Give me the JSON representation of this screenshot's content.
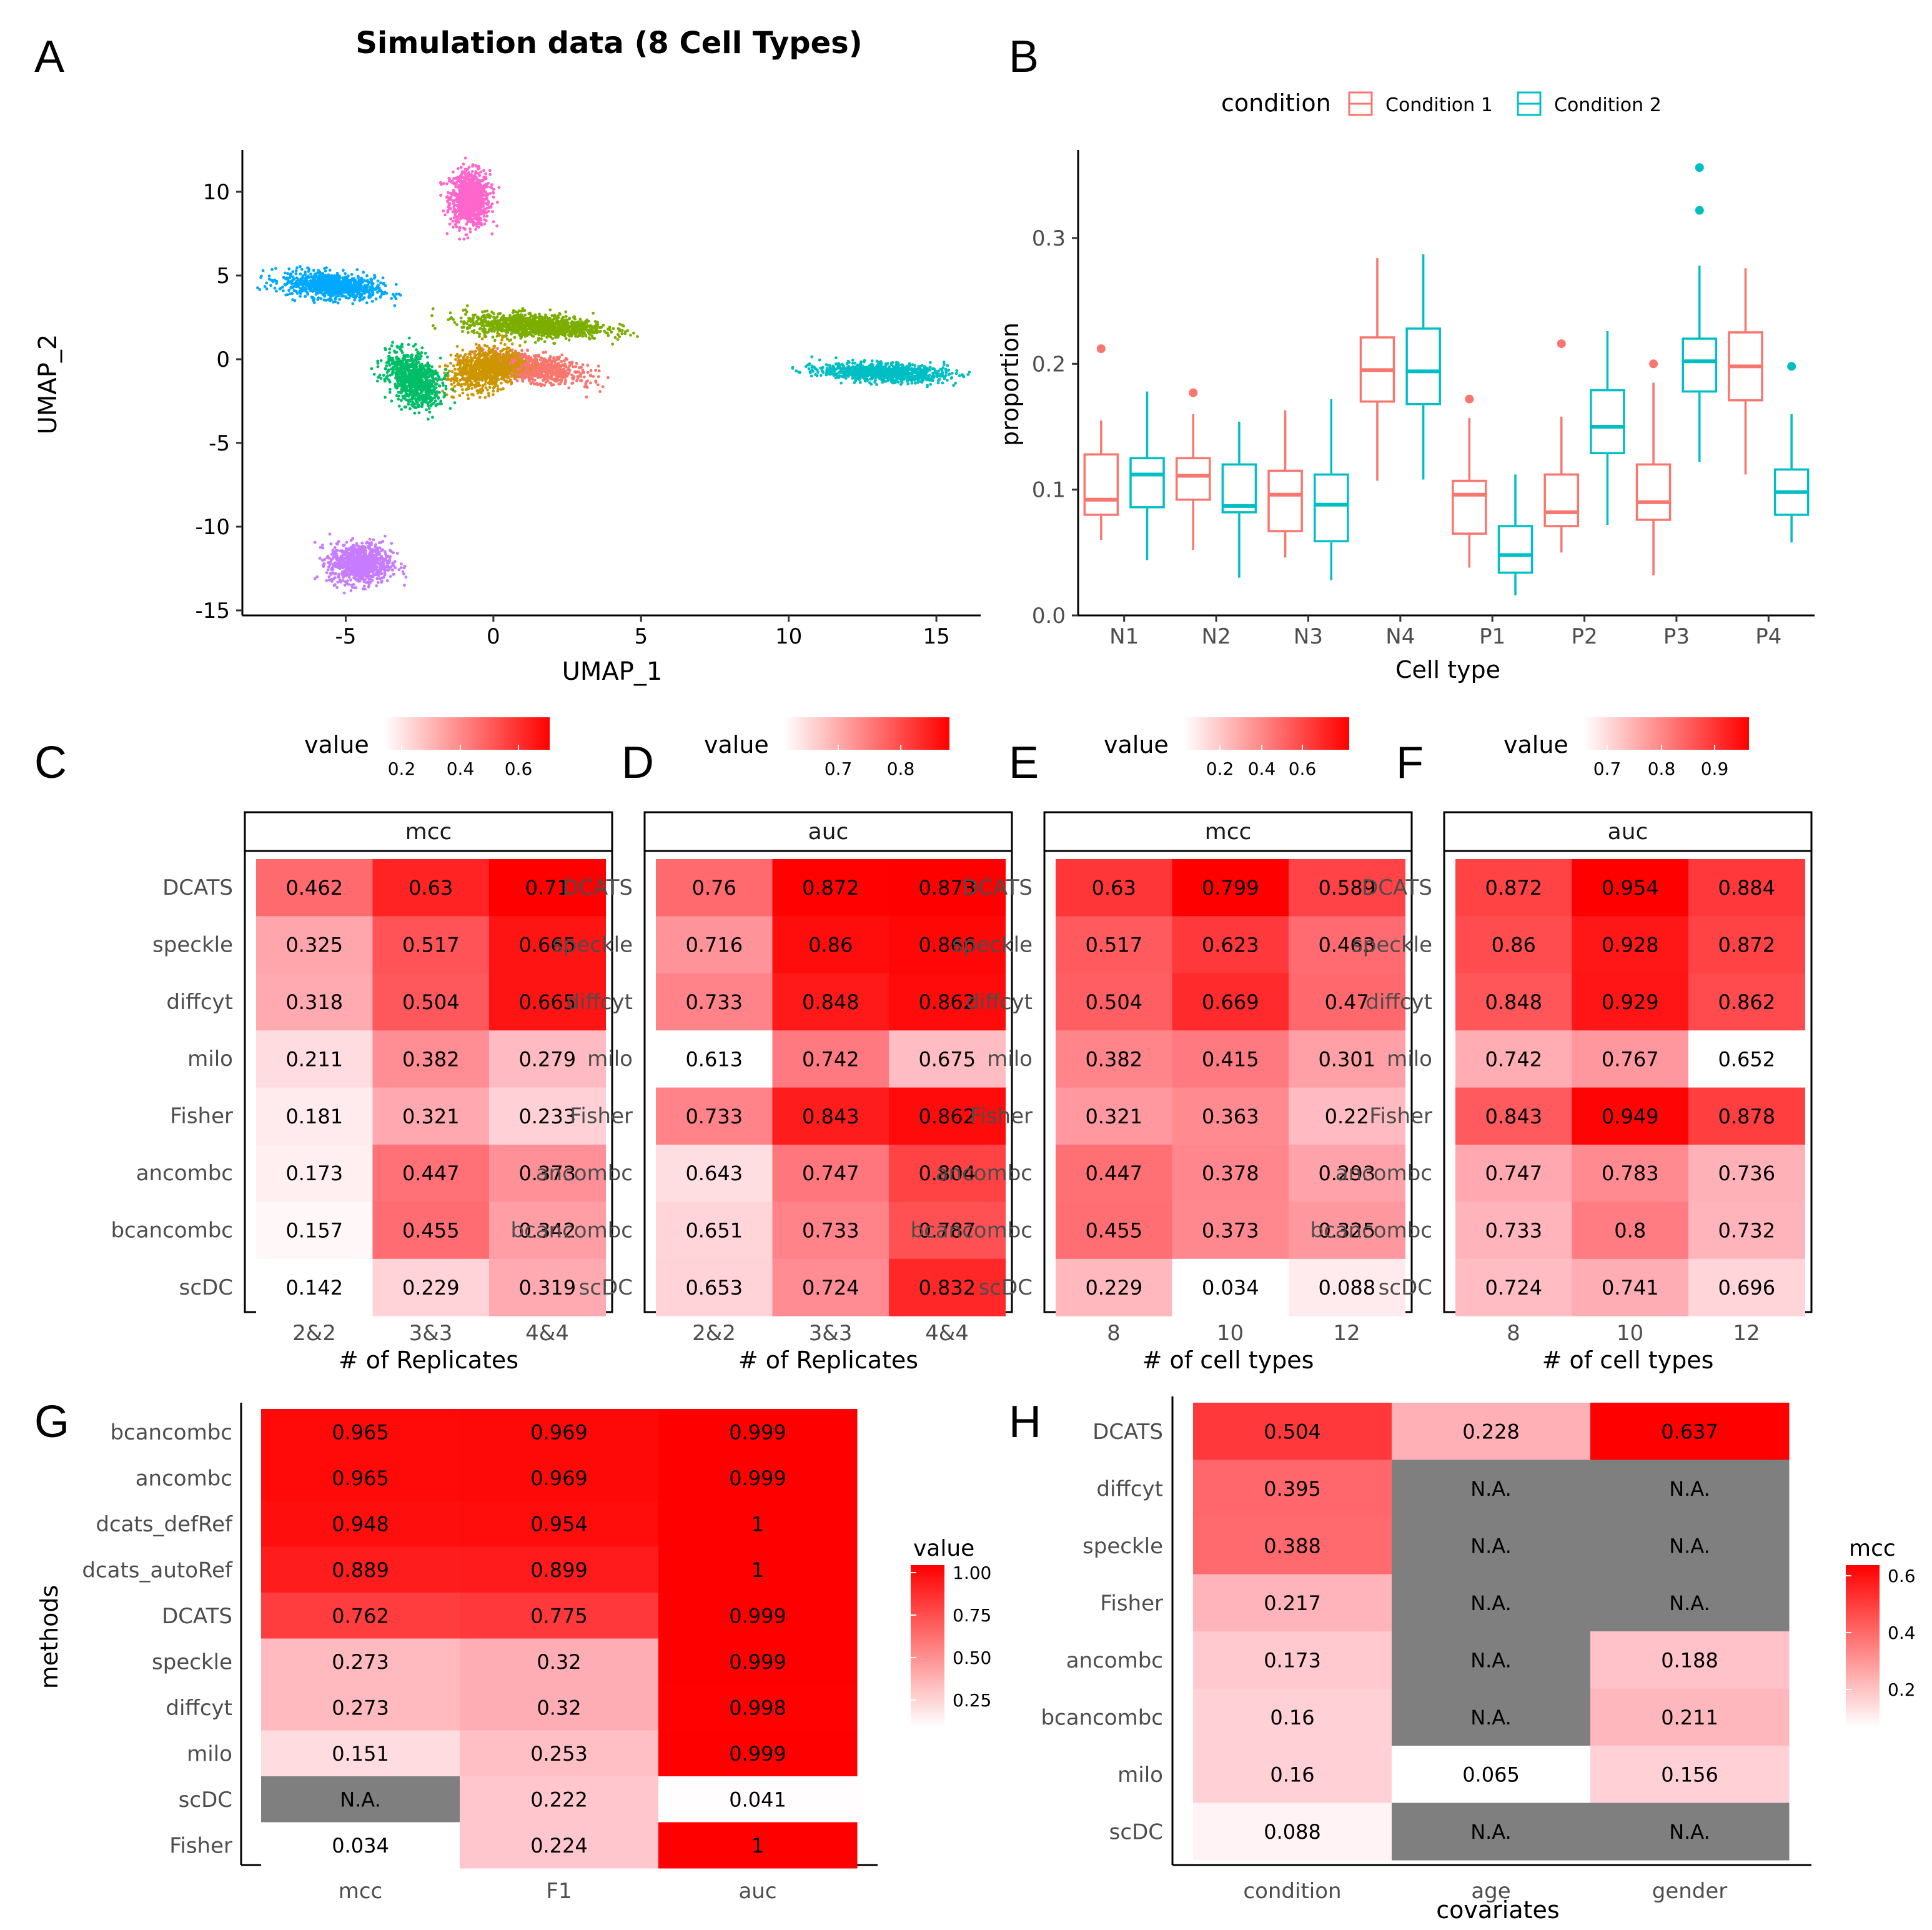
{
  "figure": {
    "panel_letters": [
      "A",
      "B",
      "C",
      "D",
      "E",
      "F",
      "G",
      "H"
    ]
  },
  "panel_a": {
    "title": "Simulation data (8 Cell Types)",
    "chart_data": {
      "type": "scatter",
      "title": "Simulation data (8 Cell Types)",
      "xlabel": "UMAP_1",
      "ylabel": "UMAP_2",
      "xlim": [
        -8.5,
        16.5
      ],
      "ylim": [
        -15.3,
        12.5
      ],
      "xticks": [
        -5,
        0,
        5,
        10,
        15
      ],
      "yticks": [
        10,
        5,
        0,
        -5,
        -10,
        -15
      ],
      "clusters": [
        {
          "color": "#ff66cc",
          "cx": -0.8,
          "cy": 9.6,
          "sx": 0.45,
          "sy": 1.1,
          "n": 900
        },
        {
          "color": "#00a9ff",
          "cx": -5.5,
          "cy": 4.4,
          "sx": 1.1,
          "sy": 0.5,
          "n": 900,
          "angle": -10
        },
        {
          "color": "#7cae00",
          "cx": 1.4,
          "cy": 2.0,
          "sx": 1.6,
          "sy": 0.45,
          "n": 1100,
          "angle": -5
        },
        {
          "color": "#f8766d",
          "cx": 1.3,
          "cy": -0.5,
          "sx": 1.2,
          "sy": 0.5,
          "n": 900,
          "angle": -18
        },
        {
          "color": "#cd9600",
          "cx": -0.3,
          "cy": -0.6,
          "sx": 0.7,
          "sy": 0.9,
          "n": 800,
          "angle": -35
        },
        {
          "color": "#00be67",
          "cx": -2.7,
          "cy": -1.2,
          "sx": 0.55,
          "sy": 1.1,
          "n": 900,
          "angle": 15
        },
        {
          "color": "#00bfc4",
          "cx": 13.2,
          "cy": -0.8,
          "sx": 1.4,
          "sy": 0.35,
          "n": 1000,
          "angle": -4
        },
        {
          "color": "#c77cff",
          "cx": -4.5,
          "cy": -12.2,
          "sx": 0.7,
          "sy": 0.8,
          "n": 900
        }
      ]
    }
  },
  "panel_b": {
    "legend_title": "condition",
    "legend_items": [
      "Condition 1",
      "Condition 2"
    ],
    "chart_data": {
      "type": "box",
      "xlabel": "Cell type",
      "ylabel": "proportion",
      "ylim": [
        0,
        0.37
      ],
      "yticks": [
        0.0,
        0.1,
        0.2,
        0.3
      ],
      "ytick_labels": [
        "0.0",
        "0.1",
        "0.2",
        "0.3"
      ],
      "categories": [
        "N1",
        "N2",
        "N3",
        "N4",
        "P1",
        "P2",
        "P3",
        "P4"
      ],
      "series": [
        {
          "name": "Condition 1",
          "color": "#f8766d",
          "boxes": [
            {
              "min": 0.06,
              "q1": 0.08,
              "med": 0.092,
              "q3": 0.128,
              "max": 0.155,
              "out": [
                0.212
              ]
            },
            {
              "min": 0.052,
              "q1": 0.092,
              "med": 0.111,
              "q3": 0.125,
              "max": 0.16,
              "out": [
                0.177
              ]
            },
            {
              "min": 0.046,
              "q1": 0.067,
              "med": 0.096,
              "q3": 0.115,
              "max": 0.163,
              "out": []
            },
            {
              "min": 0.107,
              "q1": 0.17,
              "med": 0.195,
              "q3": 0.221,
              "max": 0.284,
              "out": []
            },
            {
              "min": 0.038,
              "q1": 0.065,
              "med": 0.096,
              "q3": 0.107,
              "max": 0.157,
              "out": [
                0.172
              ]
            },
            {
              "min": 0.05,
              "q1": 0.071,
              "med": 0.082,
              "q3": 0.112,
              "max": 0.158,
              "out": [
                0.216
              ]
            },
            {
              "min": 0.032,
              "q1": 0.076,
              "med": 0.09,
              "q3": 0.12,
              "max": 0.185,
              "out": [
                0.2
              ]
            },
            {
              "min": 0.112,
              "q1": 0.171,
              "med": 0.198,
              "q3": 0.225,
              "max": 0.276,
              "out": []
            }
          ]
        },
        {
          "name": "Condition 2",
          "color": "#00bfc4",
          "boxes": [
            {
              "min": 0.044,
              "q1": 0.086,
              "med": 0.112,
              "q3": 0.125,
              "max": 0.178,
              "out": []
            },
            {
              "min": 0.03,
              "q1": 0.082,
              "med": 0.087,
              "q3": 0.12,
              "max": 0.154,
              "out": []
            },
            {
              "min": 0.028,
              "q1": 0.059,
              "med": 0.088,
              "q3": 0.112,
              "max": 0.172,
              "out": []
            },
            {
              "min": 0.108,
              "q1": 0.168,
              "med": 0.194,
              "q3": 0.228,
              "max": 0.287,
              "out": []
            },
            {
              "min": 0.016,
              "q1": 0.034,
              "med": 0.048,
              "q3": 0.071,
              "max": 0.112,
              "out": []
            },
            {
              "min": 0.072,
              "q1": 0.129,
              "med": 0.15,
              "q3": 0.179,
              "max": 0.226,
              "out": []
            },
            {
              "min": 0.122,
              "q1": 0.178,
              "med": 0.202,
              "q3": 0.22,
              "max": 0.278,
              "out": [
                0.322,
                0.356
              ]
            },
            {
              "min": 0.058,
              "q1": 0.08,
              "med": 0.098,
              "q3": 0.116,
              "max": 0.16,
              "out": [
                0.198
              ]
            }
          ]
        }
      ]
    }
  },
  "panels_cdef": [
    {
      "letter": "C",
      "legend_title": "value",
      "facet": "mcc",
      "xlabel": "# of Replicates",
      "xcats": [
        "2&2",
        "3&3",
        "4&4"
      ],
      "legend_ticks": [
        "0.2",
        "0.4",
        "0.6"
      ],
      "rows": [
        "DCATS",
        "speckle",
        "diffcyt",
        "milo",
        "Fisher",
        "ancombc",
        "bcancombc",
        "scDC"
      ],
      "chart_data": {
        "type": "heatmap",
        "vmin": 0.142,
        "vmax": 0.71,
        "values": [
          [
            0.462,
            0.63,
            0.71
          ],
          [
            0.325,
            0.517,
            0.665
          ],
          [
            0.318,
            0.504,
            0.665
          ],
          [
            0.211,
            0.382,
            0.279
          ],
          [
            0.181,
            0.321,
            0.233
          ],
          [
            0.173,
            0.447,
            0.373
          ],
          [
            0.157,
            0.455,
            0.342
          ],
          [
            0.142,
            0.229,
            0.319
          ]
        ],
        "labels": [
          [
            "0.462",
            "0.63",
            "0.71"
          ],
          [
            "0.325",
            "0.517",
            "0.665"
          ],
          [
            "0.318",
            "0.504",
            "0.665"
          ],
          [
            "0.211",
            "0.382",
            "0.279"
          ],
          [
            "0.181",
            "0.321",
            "0.233"
          ],
          [
            "0.173",
            "0.447",
            "0.373"
          ],
          [
            "0.157",
            "0.455",
            "0.342"
          ],
          [
            "0.142",
            "0.229",
            "0.319"
          ]
        ]
      }
    },
    {
      "letter": "D",
      "legend_title": "value",
      "facet": "auc",
      "xlabel": "# of Replicates",
      "xcats": [
        "2&2",
        "3&3",
        "4&4"
      ],
      "legend_ticks": [
        "0.7",
        "0.8"
      ],
      "rows": [
        "DCATS",
        "speckle",
        "diffcyt",
        "milo",
        "Fisher",
        "ancombc",
        "bcancombc",
        "scDC"
      ],
      "chart_data": {
        "type": "heatmap",
        "vmin": 0.613,
        "vmax": 0.873,
        "values": [
          [
            0.76,
            0.872,
            0.873
          ],
          [
            0.716,
            0.86,
            0.866
          ],
          [
            0.733,
            0.848,
            0.862
          ],
          [
            0.613,
            0.742,
            0.675
          ],
          [
            0.733,
            0.843,
            0.862
          ],
          [
            0.643,
            0.747,
            0.804
          ],
          [
            0.651,
            0.733,
            0.787
          ],
          [
            0.653,
            0.724,
            0.832
          ]
        ],
        "labels": [
          [
            "0.76",
            "0.872",
            "0.873"
          ],
          [
            "0.716",
            "0.86",
            "0.866"
          ],
          [
            "0.733",
            "0.848",
            "0.862"
          ],
          [
            "0.613",
            "0.742",
            "0.675"
          ],
          [
            "0.733",
            "0.843",
            "0.862"
          ],
          [
            "0.643",
            "0.747",
            "0.804"
          ],
          [
            "0.651",
            "0.733",
            "0.787"
          ],
          [
            "0.653",
            "0.724",
            "0.832"
          ]
        ]
      }
    },
    {
      "letter": "E",
      "legend_title": "value",
      "facet": "mcc",
      "xlabel": "# of cell types",
      "xcats": [
        "8",
        "10",
        "12"
      ],
      "legend_ticks": [
        "0.2",
        "0.4",
        "0.6"
      ],
      "rows": [
        "DCATS",
        "speckle",
        "diffcyt",
        "milo",
        "Fisher",
        "ancombc",
        "bcancombc",
        "scDC"
      ],
      "chart_data": {
        "type": "heatmap",
        "vmin": 0.034,
        "vmax": 0.799,
        "values": [
          [
            0.63,
            0.799,
            0.589
          ],
          [
            0.517,
            0.623,
            0.463
          ],
          [
            0.504,
            0.669,
            0.47
          ],
          [
            0.382,
            0.415,
            0.301
          ],
          [
            0.321,
            0.363,
            0.22
          ],
          [
            0.447,
            0.378,
            0.293
          ],
          [
            0.455,
            0.373,
            0.325
          ],
          [
            0.229,
            0.034,
            0.088
          ]
        ],
        "labels": [
          [
            "0.63",
            "0.799",
            "0.589"
          ],
          [
            "0.517",
            "0.623",
            "0.463"
          ],
          [
            "0.504",
            "0.669",
            "0.47"
          ],
          [
            "0.382",
            "0.415",
            "0.301"
          ],
          [
            "0.321",
            "0.363",
            "0.22"
          ],
          [
            "0.447",
            "0.378",
            "0.293"
          ],
          [
            "0.455",
            "0.373",
            "0.325"
          ],
          [
            "0.229",
            "0.034",
            "0.088"
          ]
        ]
      }
    },
    {
      "letter": "F",
      "legend_title": "value",
      "facet": "auc",
      "xlabel": "# of cell types",
      "xcats": [
        "8",
        "10",
        "12"
      ],
      "legend_ticks": [
        "0.7",
        "0.8",
        "0.9"
      ],
      "rows": [
        "DCATS",
        "speckle",
        "diffcyt",
        "milo",
        "Fisher",
        "ancombc",
        "bcancombc",
        "scDC"
      ],
      "chart_data": {
        "type": "heatmap",
        "vmin": 0.652,
        "vmax": 0.954,
        "values": [
          [
            0.872,
            0.954,
            0.884
          ],
          [
            0.86,
            0.928,
            0.872
          ],
          [
            0.848,
            0.929,
            0.862
          ],
          [
            0.742,
            0.767,
            0.652
          ],
          [
            0.843,
            0.949,
            0.878
          ],
          [
            0.747,
            0.783,
            0.736
          ],
          [
            0.733,
            0.8,
            0.732
          ],
          [
            0.724,
            0.741,
            0.696
          ]
        ],
        "labels": [
          [
            "0.872",
            "0.954",
            "0.884"
          ],
          [
            "0.86",
            "0.928",
            "0.872"
          ],
          [
            "0.848",
            "0.929",
            "0.862"
          ],
          [
            "0.742",
            "0.767",
            "0.652"
          ],
          [
            "0.843",
            "0.949",
            "0.878"
          ],
          [
            "0.747",
            "0.783",
            "0.736"
          ],
          [
            "0.733",
            "0.8",
            "0.732"
          ],
          [
            "0.724",
            "0.741",
            "0.696"
          ]
        ]
      }
    }
  ],
  "panel_g": {
    "ylabel": "methods",
    "legend_title": "value",
    "legend_ticks": [
      "1.00",
      "0.75",
      "0.50",
      "0.25"
    ],
    "xcats": [
      "mcc",
      "F1",
      "auc"
    ],
    "rows": [
      "bcancombc",
      "ancombc",
      "dcats_defRef",
      "dcats_autoRef",
      "DCATS",
      "speckle",
      "diffcyt",
      "milo",
      "scDC",
      "Fisher"
    ],
    "chart_data": {
      "type": "heatmap",
      "vmin": 0.034,
      "vmax": 1.0,
      "values": [
        [
          0.965,
          0.969,
          0.999
        ],
        [
          0.965,
          0.969,
          0.999
        ],
        [
          0.948,
          0.954,
          1
        ],
        [
          0.889,
          0.899,
          1
        ],
        [
          0.762,
          0.775,
          0.999
        ],
        [
          0.273,
          0.32,
          0.999
        ],
        [
          0.273,
          0.32,
          0.998
        ],
        [
          0.151,
          0.253,
          0.999
        ],
        [
          null,
          0.222,
          0.041
        ],
        [
          0.034,
          0.224,
          1
        ]
      ],
      "labels": [
        [
          "0.965",
          "0.969",
          "0.999"
        ],
        [
          "0.965",
          "0.969",
          "0.999"
        ],
        [
          "0.948",
          "0.954",
          "1"
        ],
        [
          "0.889",
          "0.899",
          "1"
        ],
        [
          "0.762",
          "0.775",
          "0.999"
        ],
        [
          "0.273",
          "0.32",
          "0.999"
        ],
        [
          "0.273",
          "0.32",
          "0.998"
        ],
        [
          "0.151",
          "0.253",
          "0.999"
        ],
        [
          "N.A.",
          "0.222",
          "0.041"
        ],
        [
          "0.034",
          "0.224",
          "1"
        ]
      ]
    }
  },
  "panel_h": {
    "xlabel": "covariates",
    "legend_title": "mcc",
    "legend_ticks": [
      "0.6",
      "0.4",
      "0.2"
    ],
    "xcats": [
      "condition",
      "age",
      "gender"
    ],
    "rows": [
      "DCATS",
      "diffcyt",
      "speckle",
      "Fisher",
      "ancombc",
      "bcancombc",
      "milo",
      "scDC"
    ],
    "chart_data": {
      "type": "heatmap",
      "vmin": 0.065,
      "vmax": 0.637,
      "values": [
        [
          0.504,
          0.228,
          0.637
        ],
        [
          0.395,
          null,
          null
        ],
        [
          0.388,
          null,
          null
        ],
        [
          0.217,
          null,
          null
        ],
        [
          0.173,
          null,
          0.188
        ],
        [
          0.16,
          null,
          0.211
        ],
        [
          0.16,
          0.065,
          0.156
        ],
        [
          0.088,
          null,
          null
        ]
      ],
      "labels": [
        [
          "0.504",
          "0.228",
          "0.637"
        ],
        [
          "0.395",
          "N.A.",
          "N.A."
        ],
        [
          "0.388",
          "N.A.",
          "N.A."
        ],
        [
          "0.217",
          "N.A.",
          "N.A."
        ],
        [
          "0.173",
          "N.A.",
          "0.188"
        ],
        [
          "0.16",
          "N.A.",
          "0.211"
        ],
        [
          "0.16",
          "0.065",
          "0.156"
        ],
        [
          "0.088",
          "N.A.",
          "N.A."
        ]
      ]
    }
  }
}
